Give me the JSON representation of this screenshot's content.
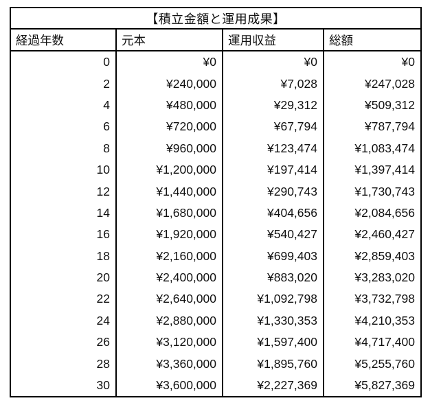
{
  "chart_data": {
    "type": "table",
    "title": "【積立金額と運用成果】",
    "columns": [
      "経過年数",
      "元本",
      "運用収益",
      "総額"
    ],
    "rows": [
      [
        "0",
        "¥0",
        "¥0",
        "¥0"
      ],
      [
        "2",
        "¥240,000",
        "¥7,028",
        "¥247,028"
      ],
      [
        "4",
        "¥480,000",
        "¥29,312",
        "¥509,312"
      ],
      [
        "6",
        "¥720,000",
        "¥67,794",
        "¥787,794"
      ],
      [
        "8",
        "¥960,000",
        "¥123,474",
        "¥1,083,474"
      ],
      [
        "10",
        "¥1,200,000",
        "¥197,414",
        "¥1,397,414"
      ],
      [
        "12",
        "¥1,440,000",
        "¥290,743",
        "¥1,730,743"
      ],
      [
        "14",
        "¥1,680,000",
        "¥404,656",
        "¥2,084,656"
      ],
      [
        "16",
        "¥1,920,000",
        "¥540,427",
        "¥2,460,427"
      ],
      [
        "18",
        "¥2,160,000",
        "¥699,403",
        "¥2,859,403"
      ],
      [
        "20",
        "¥2,400,000",
        "¥883,020",
        "¥3,283,020"
      ],
      [
        "22",
        "¥2,640,000",
        "¥1,092,798",
        "¥3,732,798"
      ],
      [
        "24",
        "¥2,880,000",
        "¥1,330,353",
        "¥4,210,353"
      ],
      [
        "26",
        "¥3,120,000",
        "¥1,597,400",
        "¥4,717,400"
      ],
      [
        "28",
        "¥3,360,000",
        "¥1,895,760",
        "¥5,255,760"
      ],
      [
        "30",
        "¥3,600,000",
        "¥2,227,369",
        "¥5,827,369"
      ]
    ],
    "layout": {
      "legend": "none",
      "grid": "vertical-dividers-only",
      "header_align": "left",
      "value_align": "right"
    }
  },
  "colors": {
    "border": "#000000",
    "text": "#111111",
    "background": "#ffffff"
  }
}
